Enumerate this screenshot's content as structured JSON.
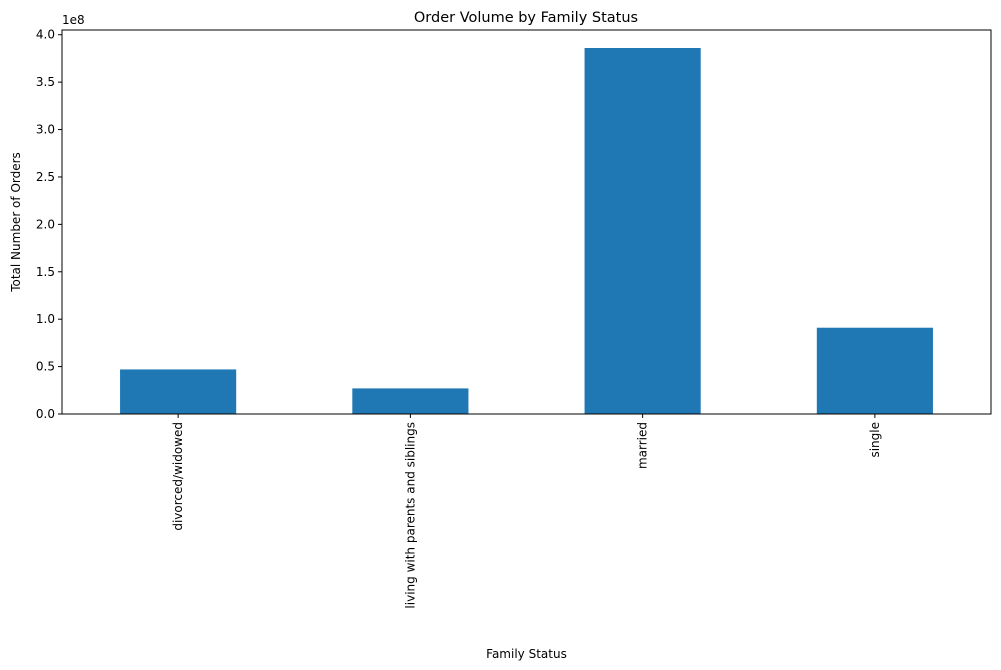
{
  "chart_data": {
    "type": "bar",
    "title": "Order Volume by Family Status",
    "xlabel": "Family Status",
    "ylabel": "Total Number of Orders",
    "offset_label": "1e8",
    "categories": [
      "divorced/widowed",
      "living with parents and siblings",
      "married",
      "single"
    ],
    "values": [
      47000000,
      27000000,
      386000000,
      91000000
    ],
    "ylim": [
      0,
      405000000
    ],
    "yticks": [
      0,
      50000000,
      100000000,
      150000000,
      200000000,
      250000000,
      300000000,
      350000000,
      400000000
    ],
    "ytick_labels": [
      "0.0",
      "0.5",
      "1.0",
      "1.5",
      "2.0",
      "2.5",
      "3.0",
      "3.5",
      "4.0"
    ],
    "bar_color": "#1f77b4",
    "grid": false,
    "legend": false
  }
}
